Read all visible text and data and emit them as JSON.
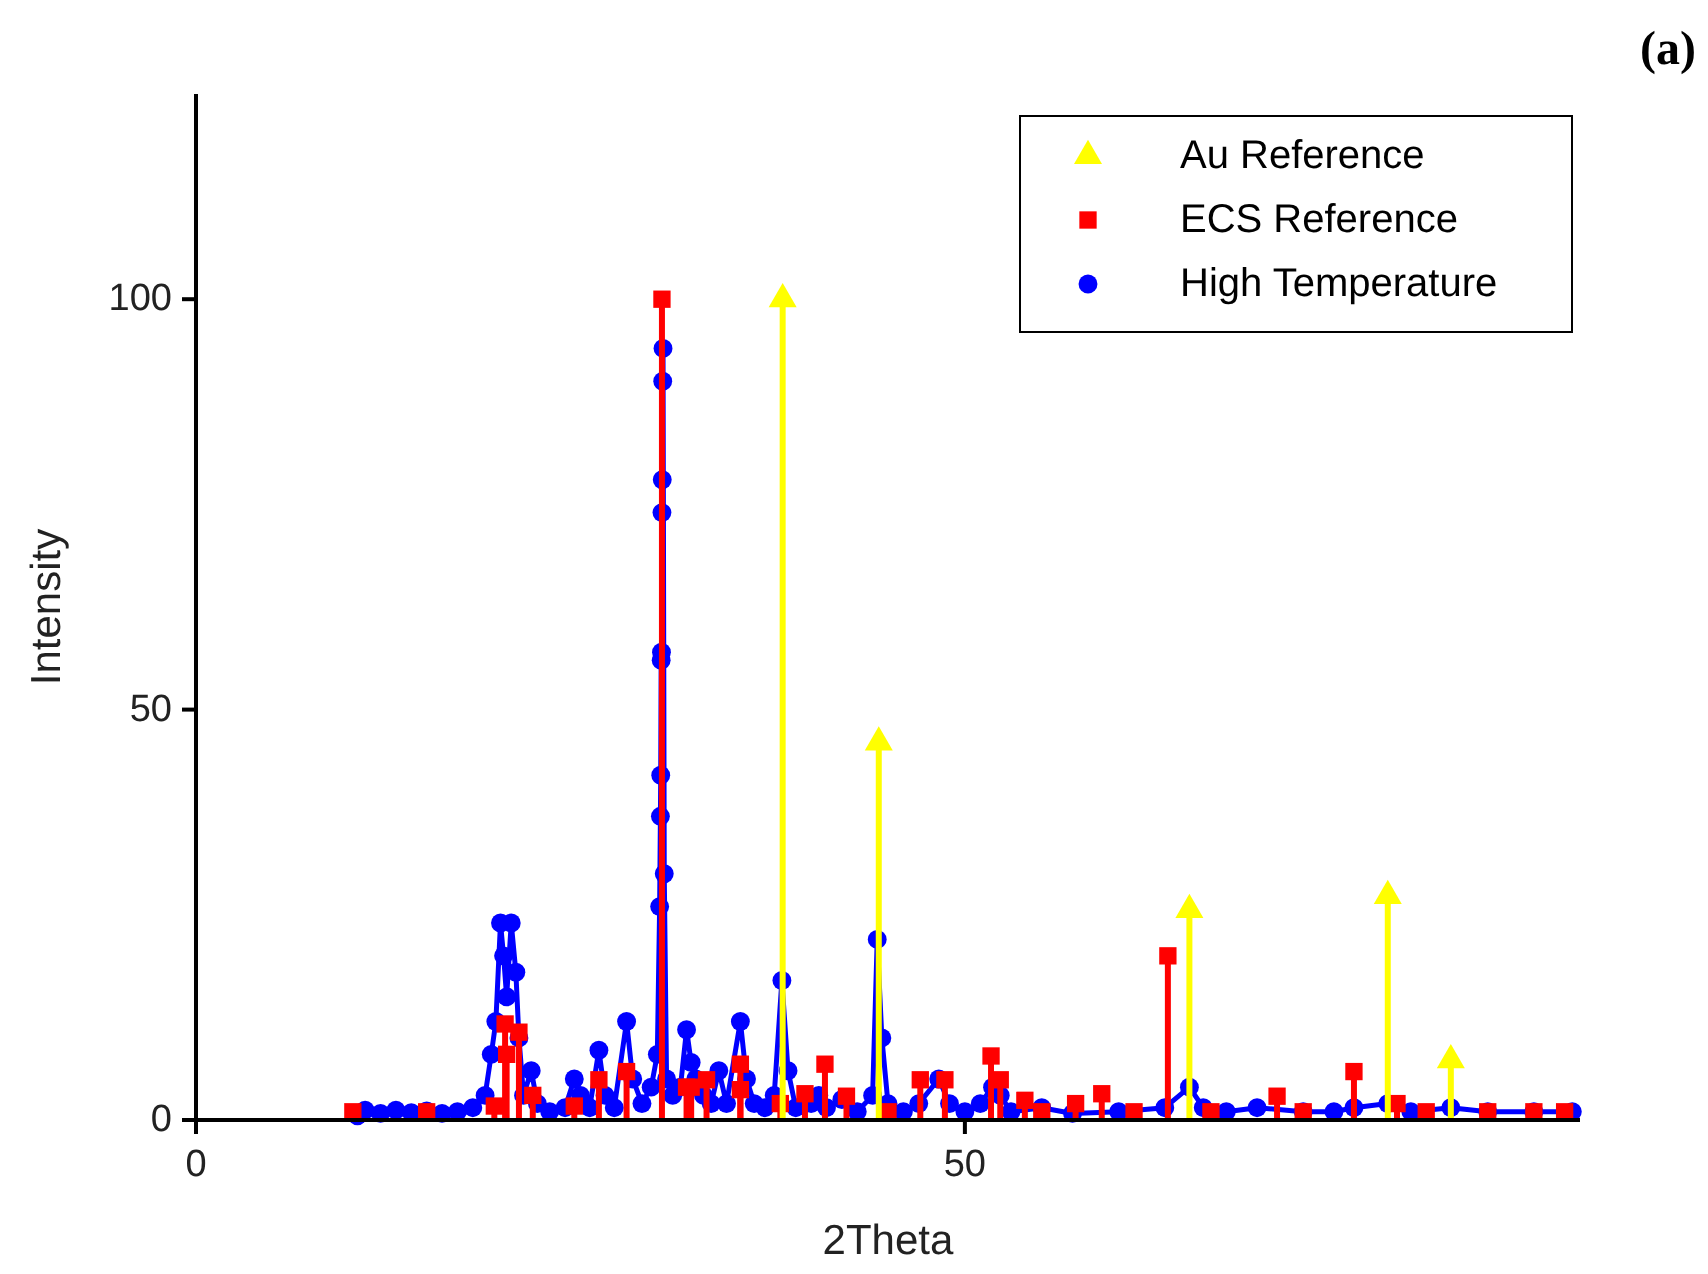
{
  "chart_data": {
    "type": "line",
    "xlabel": "2Theta",
    "ylabel": "Intensity",
    "annotations": [
      "(a)"
    ],
    "xlim": [
      0,
      90
    ],
    "ylim": [
      0,
      125
    ],
    "xticks": [
      0,
      50
    ],
    "yticks": [
      0,
      50,
      100
    ],
    "grid": false,
    "legend": "top right",
    "series": [
      {
        "name": "Au Reference",
        "type": "lollipop",
        "marker": "triangle",
        "color": "#ffff00",
        "x": [
          38.15,
          44.4,
          64.6,
          77.5,
          81.6
        ],
        "values": [
          100,
          46,
          25.6,
          27.3,
          7.3
        ]
      },
      {
        "name": "ECS Reference",
        "type": "lollipop",
        "marker": "square",
        "color": "#ff0000",
        "x": [
          10.2,
          15,
          19.4,
          20.1,
          20.2,
          21.0,
          21.9,
          24.6,
          26.2,
          28.0,
          30.3,
          31.9,
          32.2,
          33.2,
          35.4,
          35.4,
          38.0,
          39.6,
          40.9,
          42.3,
          45,
          47.1,
          48.7,
          51.7,
          52.3,
          53.9,
          55,
          57.2,
          58.9,
          61,
          63.2,
          66,
          70.3,
          72,
          75.3,
          78.1,
          80,
          84,
          87,
          89
        ],
        "values": [
          1,
          1,
          1.7,
          11.7,
          8,
          10.7,
          3,
          1.7,
          4.9,
          5.9,
          100,
          4,
          4,
          4.9,
          6.8,
          3.7,
          2,
          3.2,
          6.8,
          2.9,
          1,
          4.9,
          4.9,
          7.8,
          4.9,
          2.4,
          1,
          2,
          3.2,
          1,
          20,
          1,
          2.9,
          1,
          5.9,
          2,
          1,
          1,
          1,
          1
        ]
      },
      {
        "name": "High Temperature",
        "marker": "circle",
        "color": "#0000ff",
        "x": [
          10.5,
          11,
          12,
          13,
          14,
          15,
          16,
          17,
          18,
          18.8,
          19.2,
          19.5,
          19.8,
          20,
          20.2,
          20.5,
          20.8,
          21,
          21.3,
          21.8,
          22.2,
          23,
          24,
          24.6,
          25,
          25.6,
          26.2,
          26.6,
          27.2,
          28,
          28.4,
          29,
          29.6,
          30,
          30.15,
          30.2,
          30.22,
          30.25,
          30.27,
          30.3,
          30.32,
          30.35,
          30.37,
          30.45,
          30.6,
          31,
          31.5,
          31.9,
          32.2,
          32.5,
          33,
          33.5,
          34,
          34.5,
          35.4,
          35.8,
          36.3,
          37,
          37.6,
          38.1,
          38.5,
          39,
          40,
          40.5,
          41,
          42,
          43,
          44,
          44.3,
          44.6,
          45,
          46,
          47,
          48.3,
          49,
          50,
          51,
          51.8,
          52.3,
          53,
          55,
          57,
          60,
          63,
          64.6,
          65.5,
          67,
          69,
          72,
          74,
          75.3,
          77.5,
          79,
          81.6,
          84,
          87,
          89.5
        ],
        "values": [
          0.5,
          1.2,
          0.8,
          1.2,
          0.9,
          1.1,
          0.8,
          1,
          1.5,
          3,
          8,
          12,
          24,
          20,
          15,
          24,
          18,
          10,
          3,
          6,
          2,
          1,
          1.5,
          5,
          3,
          1.5,
          8.5,
          3,
          1.5,
          12,
          5,
          2,
          4,
          8,
          26,
          37,
          42,
          56,
          57,
          74,
          78,
          90,
          94,
          30,
          5,
          3,
          4,
          11,
          7,
          5,
          3,
          2,
          6,
          2,
          12,
          5,
          2,
          1.5,
          3,
          17,
          6,
          1.5,
          2,
          3,
          1.5,
          2.5,
          1,
          3,
          22,
          10,
          2,
          1,
          2,
          5,
          2,
          1,
          2,
          4,
          3,
          1,
          1.5,
          0.8,
          1,
          1.5,
          4,
          1.5,
          1,
          1.5,
          1,
          1,
          1.5,
          2,
          1,
          1.5,
          1,
          1,
          1
        ]
      }
    ]
  }
}
